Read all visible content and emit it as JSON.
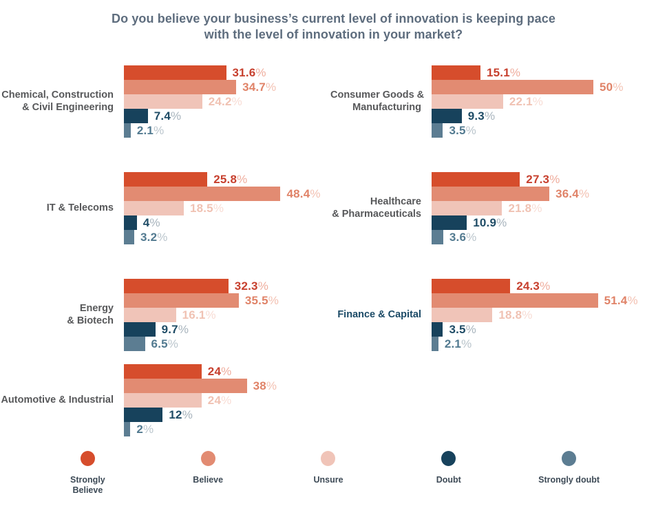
{
  "title": {
    "lines": [
      "Do you believe your business’s current level of innovation is keeping pace",
      "with the level of innovation in your market?"
    ]
  },
  "colors": {
    "background": "#ffffff",
    "title_text": "#5e6d7e",
    "industry_label": "#57585a",
    "finance_label": "#1b4a66",
    "legend_label": "#3d4a56"
  },
  "chart_data": {
    "type": "bar",
    "orientation": "horizontal",
    "unit": "%",
    "title": "Do you believe your business’s current level of innovation is keeping pace with the level of innovation in your market?",
    "xlim": [
      0,
      55
    ],
    "grid": false,
    "legend_position": "bottom",
    "series": [
      {
        "name": "Strongly Believe",
        "slug": "strongly-believe",
        "bar_color": "#d64d2c",
        "value_color": "#c7402e",
        "percent_color": "#efad9d"
      },
      {
        "name": "Believe",
        "slug": "believe",
        "bar_color": "#e28b72",
        "value_color": "#e08368",
        "percent_color": "#f3c1b2"
      },
      {
        "name": "Unsure",
        "slug": "unsure",
        "bar_color": "#f0c4b8",
        "value_color": "#f0c2b3",
        "percent_color": "#f8dcd4"
      },
      {
        "name": "Doubt",
        "slug": "doubt",
        "bar_color": "#17425c",
        "value_color": "#1f4c66",
        "percent_color": "#a8b4bd"
      },
      {
        "name": "Strongly doubt",
        "slug": "strongly-doubt",
        "bar_color": "#5c7d92",
        "value_color": "#527a90",
        "percent_color": "#bac5cc"
      }
    ],
    "groups": [
      {
        "label": [
          "Chemical, Construction",
          "& Civil Engineering"
        ],
        "values": [
          31.6,
          34.7,
          24.2,
          7.4,
          2.1
        ]
      },
      {
        "label": [
          "Consumer Goods &",
          "Manufacturing"
        ],
        "values": [
          15.1,
          50,
          22.1,
          9.3,
          3.5
        ]
      },
      {
        "label": [
          "IT & Telecoms"
        ],
        "values": [
          25.8,
          48.4,
          18.5,
          4,
          3.2
        ]
      },
      {
        "label": [
          "Healthcare",
          "& Pharmaceuticals"
        ],
        "values": [
          27.3,
          36.4,
          21.8,
          10.9,
          3.6
        ]
      },
      {
        "label": [
          "Energy",
          "& Biotech"
        ],
        "values": [
          32.3,
          35.5,
          16.1,
          9.7,
          6.5
        ]
      },
      {
        "label": [
          "Finance & Capital"
        ],
        "values": [
          24.3,
          51.4,
          18.8,
          3.5,
          2.1
        ],
        "label_color": "#1b4a66"
      },
      {
        "label": [
          "Automotive & Industrial"
        ],
        "values": [
          24,
          38,
          24,
          12,
          2
        ]
      }
    ]
  },
  "legend": {
    "items": [
      {
        "label": [
          "Strongly",
          "Believe"
        ],
        "series": "strongly-believe"
      },
      {
        "label": [
          "Believe"
        ],
        "series": "believe"
      },
      {
        "label": [
          "Unsure"
        ],
        "series": "unsure"
      },
      {
        "label": [
          "Doubt"
        ],
        "series": "doubt"
      },
      {
        "label": [
          "Strongly doubt"
        ],
        "series": "strongly-doubt"
      }
    ]
  }
}
